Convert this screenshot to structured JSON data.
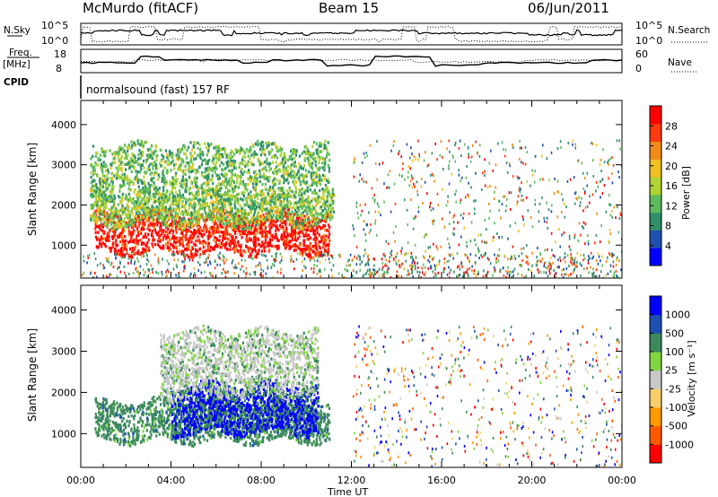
{
  "header": {
    "station": "McMurdo (fitACF)",
    "beam": "Beam 15",
    "date": "06/Jun/2011"
  },
  "top_panels": {
    "nsky_label": "N.Sky",
    "nsearch_label": "N.Search",
    "noise_ticks": [
      "10^5",
      "10^0"
    ],
    "freq_label": "Freq.",
    "freq_unit": "[MHz]",
    "freq_ticks": [
      "18",
      "8"
    ],
    "nave_label": "Nave",
    "nave_ticks": [
      "60",
      "0"
    ],
    "cpid_label": "CPID",
    "cpid_text": "normalsound (fast) 157 RF"
  },
  "chart_data": [
    {
      "type": "heatmap",
      "name": "power",
      "title": "",
      "xlabel": "Time UT",
      "ylabel": "Slant Range [km]",
      "x_ticks": [
        "00:00",
        "04:00",
        "08:00",
        "12:00",
        "16:00",
        "20:00",
        "00:00"
      ],
      "xlim_hours": [
        0,
        24
      ],
      "y_ticks": [
        1000,
        2000,
        3000,
        4000
      ],
      "ylim_km": [
        180,
        4600
      ],
      "colorbar": {
        "label": "Power [dB]",
        "tick_labels": [
          "28",
          "24",
          "20",
          "16",
          "12",
          "8",
          "4"
        ],
        "range": [
          0,
          30
        ],
        "colors": [
          "#0000ff",
          "#2050b0",
          "#2f8f6a",
          "#5dbb5d",
          "#aed332",
          "#f0c020",
          "#f08a18",
          "#ff3a10",
          "#ff0000"
        ]
      },
      "regions": [
        {
          "t0": 0.6,
          "t1": 11.0,
          "r0": 800,
          "r1": 1800,
          "level": 0.92,
          "note": "strong band"
        },
        {
          "t0": 0.4,
          "t1": 11.2,
          "r0": 1500,
          "r1": 2300,
          "level": 0.45
        },
        {
          "t0": 0.4,
          "t1": 11.0,
          "r0": 2200,
          "r1": 3500,
          "level": 0.4
        },
        {
          "t0": 12.0,
          "t1": 24.0,
          "r0": 200,
          "r1": 3600,
          "level": 0.35,
          "note": "sparse"
        },
        {
          "t0": 0.0,
          "t1": 24.0,
          "r0": 180,
          "r1": 800,
          "level": 0.55,
          "note": "near range"
        }
      ]
    },
    {
      "type": "heatmap",
      "name": "velocity",
      "title": "",
      "xlabel": "Time UT",
      "ylabel": "Slant Range [km]",
      "x_ticks": [
        "00:00",
        "04:00",
        "08:00",
        "12:00",
        "16:00",
        "20:00",
        "00:00"
      ],
      "xlim_hours": [
        0,
        24
      ],
      "y_ticks": [
        1000,
        2000,
        3000,
        4000
      ],
      "ylim_km": [
        180,
        4600
      ],
      "colorbar": {
        "label": "Velocity [m s⁻¹]",
        "tick_labels": [
          "1000",
          "500",
          "100",
          "25",
          "-25",
          "-100",
          "-500",
          "-1000"
        ],
        "range": [
          -1000,
          1000
        ],
        "colors": [
          "#ff0000",
          "#ff5a00",
          "#ff9a00",
          "#f7cf6a",
          "#c8c8c8",
          "#7fd63f",
          "#3c8a5c",
          "#1e50b4",
          "#0000ff"
        ]
      },
      "regions": [
        {
          "t0": 0.6,
          "t1": 11.0,
          "r0": 800,
          "r1": 1800,
          "level": 0.72,
          "note": "green band"
        },
        {
          "t0": 4.0,
          "t1": 10.5,
          "r0": 1000,
          "r1": 2200,
          "level": 0.92,
          "note": "blue streaks"
        },
        {
          "t0": 3.5,
          "t1": 10.5,
          "r0": 1900,
          "r1": 3500,
          "level": 0.45,
          "note": "gray"
        },
        {
          "t0": 12.0,
          "t1": 24.0,
          "r0": 200,
          "r1": 3600,
          "level": 0.35,
          "note": "sparse"
        }
      ]
    }
  ]
}
